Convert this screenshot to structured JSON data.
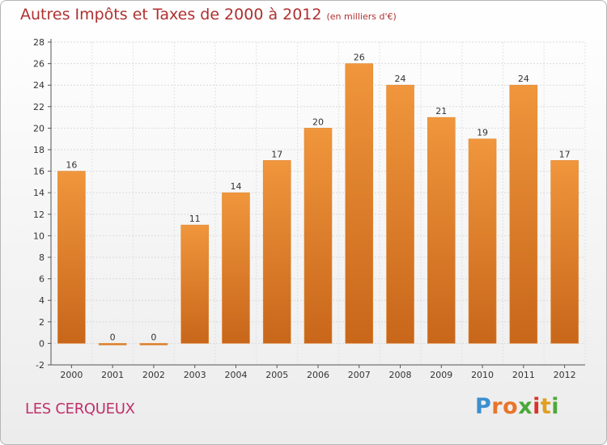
{
  "title": "Autres Impôts et Taxes de 2000 à 2012",
  "subtitle": "(en milliers d'€)",
  "commune": "LES CERQUEUX",
  "logo": {
    "letters": [
      "P",
      "r",
      "o",
      "x",
      "i",
      "t",
      "i"
    ],
    "colors": [
      "#3b8fd0",
      "#e8752a",
      "#e8752a",
      "#4da83a",
      "#d8342a",
      "#e0a020",
      "#4da83a"
    ]
  },
  "colors": {
    "bar": "#f0963c",
    "bar_dark": "#c8661a",
    "title": "#b03030",
    "commune": "#c0306a"
  },
  "chart_data": {
    "type": "bar",
    "categories": [
      "2000",
      "2001",
      "2002",
      "2003",
      "2004",
      "2005",
      "2006",
      "2007",
      "2008",
      "2009",
      "2010",
      "2011",
      "2012"
    ],
    "values": [
      16,
      0,
      0,
      11,
      14,
      17,
      20,
      26,
      24,
      21,
      19,
      24,
      17
    ],
    "title": "Autres Impôts et Taxes de 2000 à 2012",
    "ylim": [
      -2,
      28
    ],
    "yticks": [
      -2,
      0,
      2,
      4,
      6,
      8,
      10,
      12,
      14,
      16,
      18,
      20,
      22,
      24,
      26,
      28
    ],
    "grid": true
  }
}
